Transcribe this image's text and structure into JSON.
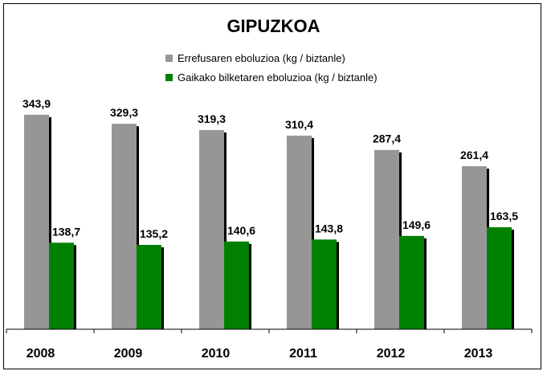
{
  "chart_data": {
    "type": "bar",
    "title": "GIPUZKOA",
    "categories": [
      "2008",
      "2009",
      "2010",
      "2011",
      "2012",
      "2013"
    ],
    "series": [
      {
        "name": "Errefusaren eboluzioa (kg / biztanle)",
        "color": "#969696",
        "values": [
          343.9,
          329.3,
          319.3,
          310.4,
          287.4,
          261.4
        ],
        "labels": [
          "343,9",
          "329,3",
          "319,3",
          "310,4",
          "287,4",
          "261,4"
        ]
      },
      {
        "name": "Gaikako bilketaren eboluzioa (kg / biztanle)",
        "color": "#008000",
        "values": [
          138.7,
          135.2,
          140.6,
          143.8,
          149.6,
          163.5
        ],
        "labels": [
          "138,7",
          "135,2",
          "140,6",
          "143,8",
          "149,6",
          "163,5"
        ]
      }
    ],
    "ylim": [
      0,
      345
    ],
    "grid": false,
    "legend_position": "top"
  }
}
